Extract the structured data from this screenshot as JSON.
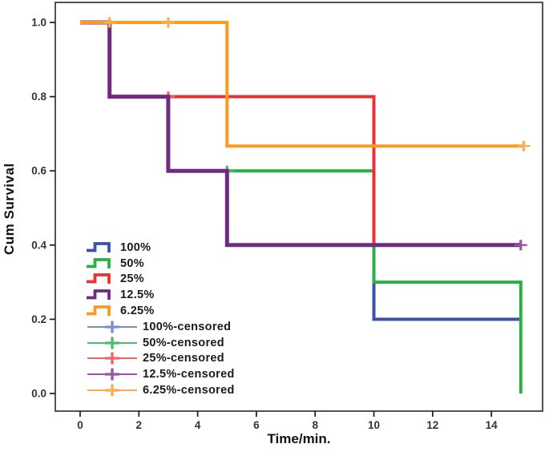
{
  "chart_data": {
    "type": "line",
    "subtype": "kaplan-meier-step-survival",
    "title": "",
    "xlabel": "Time/min.",
    "ylabel": "Cum Survival",
    "xlim": [
      -0.85,
      15.77
    ],
    "ylim": [
      -0.05,
      1.05
    ],
    "grid": false,
    "legend_position": "inside-lower-left",
    "x_ticks": [
      0,
      2,
      4,
      6,
      8,
      10,
      12,
      14
    ],
    "x_tick_labels": [
      "0",
      "2",
      "4",
      "6",
      "8",
      "10",
      "12",
      "14"
    ],
    "y_ticks": [
      1.0,
      0.8,
      0.6,
      0.4,
      0.2,
      0.0
    ],
    "y_tick_labels": [
      "1.0",
      "0.8",
      "0.6",
      "0.4",
      "0.2",
      "0.0"
    ],
    "frame_color": "#404040",
    "tick_color": "#1a1a1a",
    "tick_label_color": "#333333",
    "series": [
      {
        "name": "100%",
        "color": "#3A53A8",
        "censored_color": "#7C8FC9",
        "line_width": 4,
        "steps": [
          [
            0,
            1.0
          ],
          [
            1,
            1.0
          ],
          [
            1,
            0.8
          ],
          [
            3,
            0.8
          ],
          [
            3,
            0.6
          ],
          [
            5,
            0.6
          ],
          [
            5,
            0.4
          ],
          [
            10,
            0.4
          ],
          [
            10,
            0.2
          ],
          [
            15,
            0.2
          ]
        ],
        "censored_points": []
      },
      {
        "name": "50%",
        "color": "#2BAE47",
        "censored_color": "#4BBE6E",
        "line_width": 4,
        "steps": [
          [
            0,
            1.0
          ],
          [
            1,
            1.0
          ],
          [
            1,
            0.8
          ],
          [
            3,
            0.8
          ],
          [
            3,
            0.6
          ],
          [
            10,
            0.6
          ],
          [
            10,
            0.3
          ],
          [
            15,
            0.3
          ],
          [
            15,
            0.0
          ]
        ],
        "censored_points": [
          [
            5,
            0.6
          ]
        ]
      },
      {
        "name": "25%",
        "color": "#EC3136",
        "censored_color": "#F06668",
        "line_width": 4,
        "steps": [
          [
            0,
            1.0
          ],
          [
            1,
            1.0
          ],
          [
            1,
            0.8
          ],
          [
            10,
            0.8
          ],
          [
            10,
            0.4
          ],
          [
            15,
            0.4
          ]
        ],
        "censored_points": [
          [
            3,
            0.8
          ]
        ]
      },
      {
        "name": "12.5%",
        "color": "#6F2B80",
        "censored_color": "#9A55A5",
        "line_width": 5,
        "steps": [
          [
            0,
            1.0
          ],
          [
            1,
            1.0
          ],
          [
            1,
            0.8
          ],
          [
            3,
            0.8
          ],
          [
            3,
            0.6
          ],
          [
            5,
            0.6
          ],
          [
            5,
            0.4
          ],
          [
            15,
            0.4
          ]
        ],
        "censored_points": [
          [
            15,
            0.4
          ]
        ]
      },
      {
        "name": "6.25%",
        "color": "#F89B1E",
        "censored_color": "#FAAD53",
        "line_width": 4,
        "steps": [
          [
            0,
            1.0
          ],
          [
            5,
            1.0
          ],
          [
            5,
            0.667
          ],
          [
            15.1,
            0.667
          ]
        ],
        "censored_points": [
          [
            1,
            1.0
          ],
          [
            3,
            1.0
          ],
          [
            15.1,
            0.667
          ]
        ]
      }
    ],
    "legend": [
      {
        "label": "100%",
        "type": "line",
        "series": "100%"
      },
      {
        "label": "50%",
        "type": "line",
        "series": "50%"
      },
      {
        "label": "25%",
        "type": "line",
        "series": "25%"
      },
      {
        "label": "12.5%",
        "type": "line",
        "series": "12.5%"
      },
      {
        "label": "6.25%",
        "type": "line",
        "series": "6.25%"
      },
      {
        "label": "100%-censored",
        "type": "censored",
        "series": "100%"
      },
      {
        "label": "50%-censored",
        "type": "censored",
        "series": "50%"
      },
      {
        "label": "25%-censored",
        "type": "censored",
        "series": "25%"
      },
      {
        "label": "12.5%-censored",
        "type": "censored",
        "series": "12.5%"
      },
      {
        "label": "6.25%-censored",
        "type": "censored",
        "series": "6.25%"
      }
    ]
  }
}
